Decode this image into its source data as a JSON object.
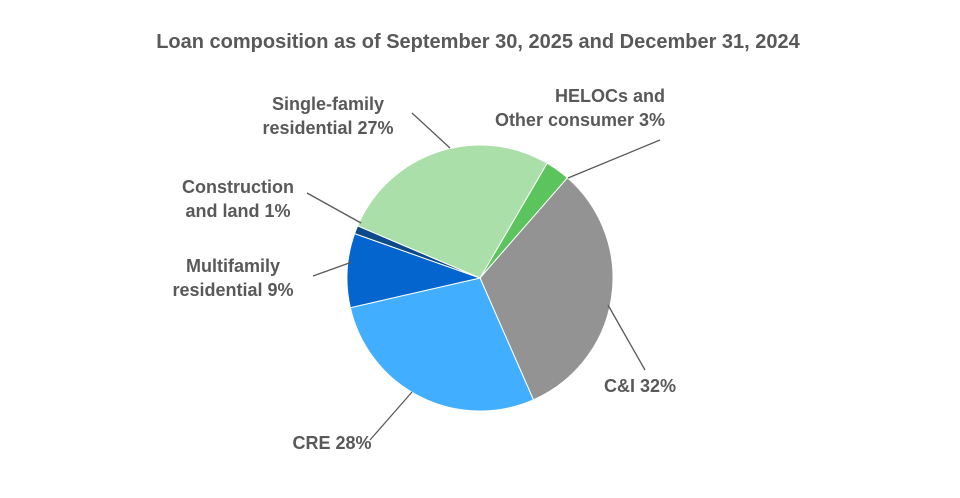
{
  "chart_data": {
    "type": "pie",
    "title": "Loan composition as of September 30, 2025 and December 31, 2024",
    "slices": [
      {
        "key": "helocs",
        "label_lines": [
          "HELOCs and",
          "Other consumer 3%"
        ],
        "value": 3,
        "color": "#5CC45C"
      },
      {
        "key": "cni",
        "label_lines": [
          "C&I 32%"
        ],
        "value": 32,
        "color": "#939393"
      },
      {
        "key": "cre",
        "label_lines": [
          "CRE 28%"
        ],
        "value": 28,
        "color": "#41AEFF"
      },
      {
        "key": "multifamily",
        "label_lines": [
          "Multifamily",
          "residential 9%"
        ],
        "value": 9,
        "color": "#0465CF"
      },
      {
        "key": "construction",
        "label_lines": [
          "Construction",
          "and land 1%"
        ],
        "value": 1,
        "color": "#0D4A8A"
      },
      {
        "key": "singlefamily",
        "label_lines": [
          "Single-family",
          "residential 27%"
        ],
        "value": 27,
        "color": "#AADFAA"
      }
    ],
    "start_angle_deg": 30.3,
    "direction": "clockwise",
    "legend": "none"
  }
}
